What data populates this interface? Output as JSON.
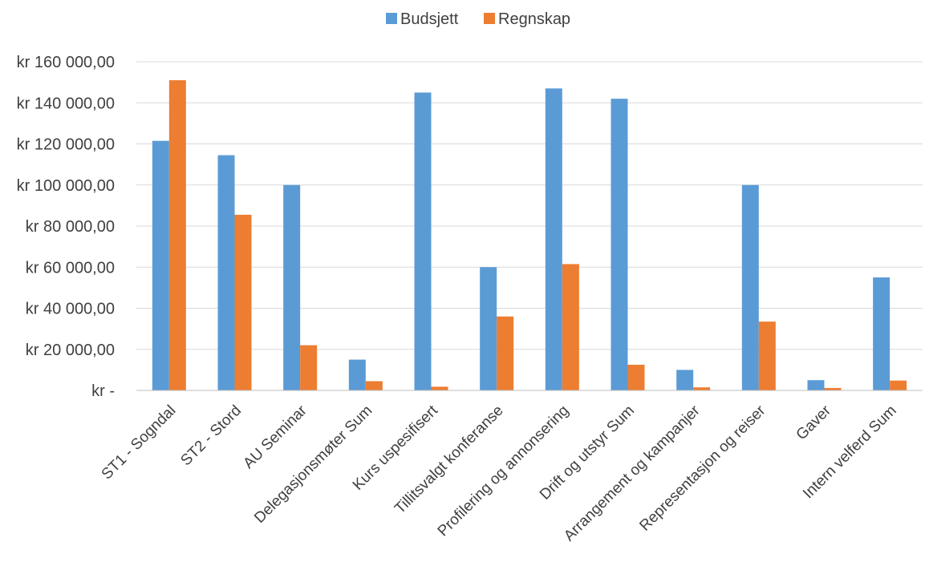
{
  "chart_data": {
    "type": "bar",
    "categories": [
      "ST1 - Sogndal",
      "ST2 - Stord",
      "AU Seminar",
      "Delegasjonsmøter Sum",
      "Kurs uspesifisert",
      "Tillitsvalgt konferanse",
      "Profilering og annonsering",
      "Drift og utstyr Sum",
      "Arrangement og kampanjer",
      "Representasjon og reiser",
      "Gaver",
      "Intern velferd Sum"
    ],
    "series": [
      {
        "name": "Budsjett",
        "color": "#5b9bd5",
        "values": [
          121500,
          114500,
          100000,
          15000,
          145000,
          60000,
          147000,
          142000,
          10000,
          100000,
          5000,
          55000
        ]
      },
      {
        "name": "Regnskap",
        "color": "#ed7d31",
        "values": [
          151000,
          85500,
          22000,
          4500,
          1800,
          36000,
          61500,
          12500,
          1500,
          33500,
          1200,
          4800
        ]
      }
    ],
    "ylim": [
      0,
      160000
    ],
    "ytick_step": 20000,
    "ytick_labels": [
      "kr -",
      "kr 20 000,00",
      "kr 40 000,00",
      "kr 60 000,00",
      "kr 80 000,00",
      "kr 100 000,00",
      "kr 120 000,00",
      "kr 140 000,00",
      "kr 160 000,00"
    ],
    "title": "",
    "xlabel": "",
    "ylabel": "",
    "legend_position": "top-center",
    "grid": true
  }
}
